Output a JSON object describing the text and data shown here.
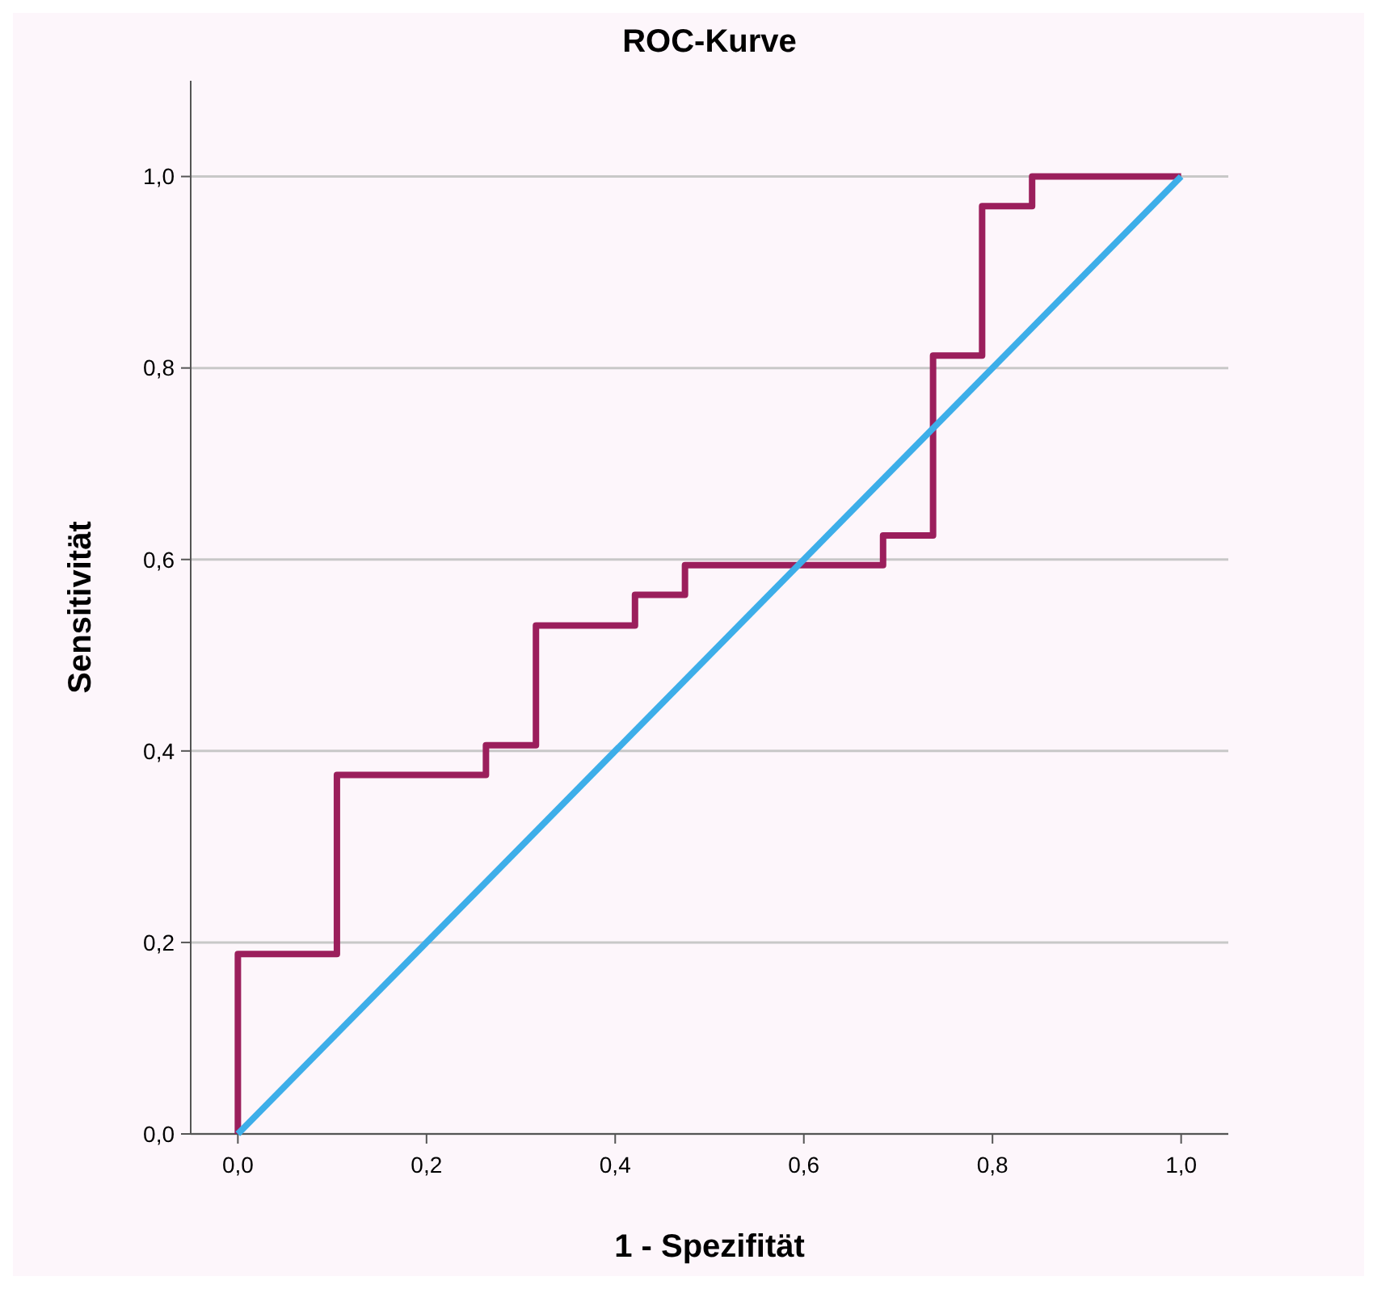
{
  "chart_data": {
    "type": "line",
    "title": "ROC-Kurve",
    "xlabel": "1 - Spezifität",
    "ylabel": "Sensitivität",
    "xlim": [
      -0.05,
      1.05
    ],
    "ylim": [
      0,
      1.1
    ],
    "xticks": [
      {
        "value": 0,
        "label": "0,0"
      },
      {
        "value": 0.2,
        "label": "0,2"
      },
      {
        "value": 0.4,
        "label": "0,4"
      },
      {
        "value": 0.6,
        "label": "0,6"
      },
      {
        "value": 0.8,
        "label": "0,8"
      },
      {
        "value": 1,
        "label": "1,0"
      }
    ],
    "yticks": [
      {
        "value": 0,
        "label": "0,0"
      },
      {
        "value": 0.2,
        "label": "0,2"
      },
      {
        "value": 0.4,
        "label": "0,4"
      },
      {
        "value": 0.6,
        "label": "0,6"
      },
      {
        "value": 0.8,
        "label": "0,8"
      },
      {
        "value": 1,
        "label": "1,0"
      }
    ],
    "grid": "y",
    "marker": "none",
    "line_style": "solid",
    "series": [
      {
        "color": "#9b1f5c",
        "x": [
          0,
          0,
          0.105,
          0.105,
          0.263,
          0.263,
          0.316,
          0.316,
          0.421,
          0.421,
          0.474,
          0.474,
          0.684,
          0.684,
          0.737,
          0.737,
          0.789,
          0.789,
          0.842,
          0.842,
          1
        ],
        "values": [
          0,
          0.188,
          0.188,
          0.375,
          0.375,
          0.406,
          0.406,
          0.531,
          0.531,
          0.563,
          0.563,
          0.594,
          0.594,
          0.625,
          0.625,
          0.813,
          0.813,
          0.969,
          0.969,
          1,
          1
        ]
      },
      {
        "color": "#3daee9",
        "x": [
          0,
          1
        ],
        "values": [
          0,
          1
        ]
      }
    ]
  }
}
